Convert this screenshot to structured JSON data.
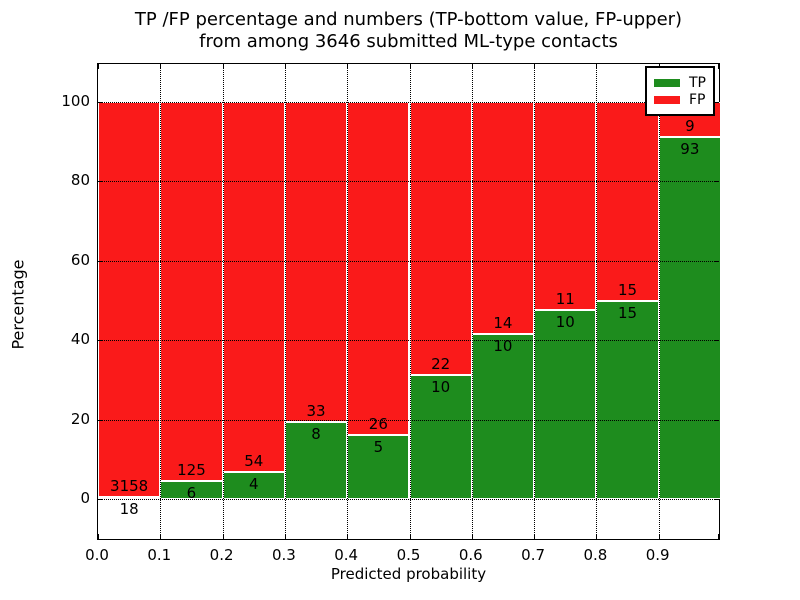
{
  "figure": {
    "title_line1": "TP /FP percentage and numbers (TP-bottom value, FP-upper)",
    "title_line2": "from among 3646 submitted ML-type contacts"
  },
  "chart_data": {
    "type": "bar",
    "stacked": true,
    "title": "TP /FP percentage and numbers (TP-bottom value, FP-upper)\nfrom among 3646 submitted ML-type contacts",
    "xlabel": "Predicted probability",
    "ylabel": "Percentage",
    "total_contacts": 3646,
    "bin_width": 0.1,
    "categories": [
      0.0,
      0.1,
      0.2,
      0.3,
      0.4,
      0.5,
      0.6,
      0.7,
      0.8,
      0.9
    ],
    "xtick_labels": [
      "0.0",
      "0.1",
      "0.2",
      "0.3",
      "0.4",
      "0.5",
      "0.6",
      "0.7",
      "0.8",
      "0.9"
    ],
    "ytick_values": [
      0,
      20,
      40,
      60,
      80,
      100
    ],
    "xlim": [
      0.0,
      1.0
    ],
    "ylim": [
      -10.6,
      109.6
    ],
    "grid": true,
    "grid_style": "dotted",
    "legend_position": "upper right",
    "bar_edge_color": "#ffffff",
    "series": [
      {
        "name": "TP",
        "color": "#1e8c1e",
        "counts": [
          18,
          6,
          4,
          8,
          5,
          10,
          10,
          10,
          15,
          93
        ],
        "pct": [
          0.57,
          4.58,
          6.9,
          19.51,
          16.13,
          31.25,
          41.67,
          47.62,
          50.0,
          91.18
        ]
      },
      {
        "name": "FP",
        "color": "#fa1a1a",
        "counts": [
          3158,
          125,
          54,
          33,
          26,
          22,
          14,
          11,
          15,
          9
        ],
        "pct": [
          99.43,
          95.42,
          93.1,
          80.49,
          83.87,
          68.75,
          58.33,
          52.38,
          50.0,
          8.82
        ]
      }
    ]
  },
  "legend": {
    "entries": [
      {
        "label": "TP",
        "color": "#1e8c1e"
      },
      {
        "label": "FP",
        "color": "#fa1a1a"
      }
    ]
  }
}
